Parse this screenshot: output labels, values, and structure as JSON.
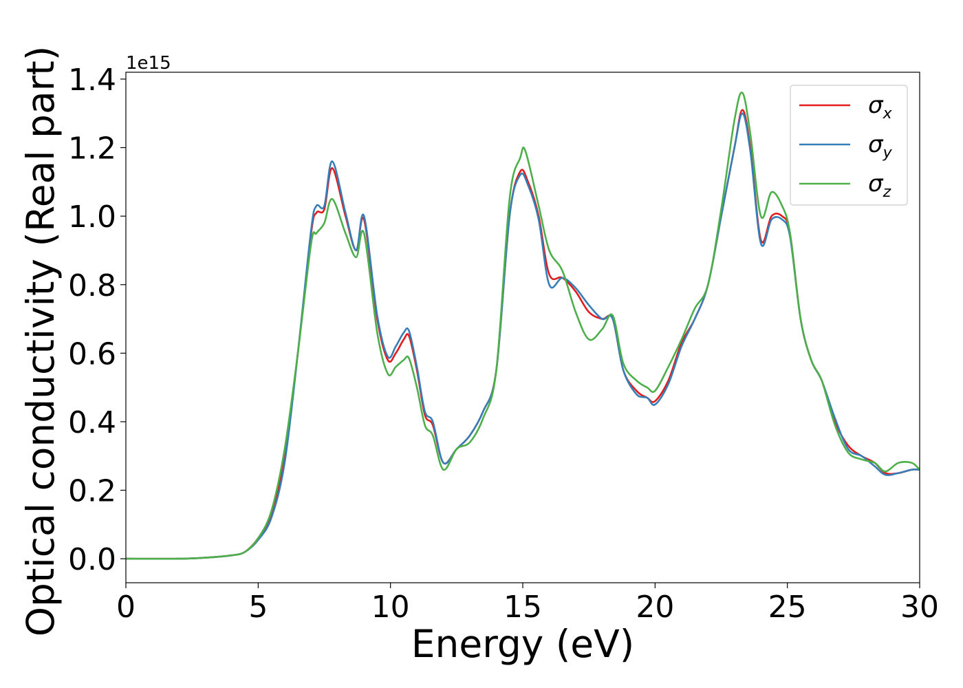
{
  "chart_data": {
    "type": "line",
    "title": "",
    "xlabel": "Energy (eV)",
    "ylabel": "Optical conductivity (Real part)",
    "y_offset_text": "1e15",
    "xlim": [
      0,
      30
    ],
    "ylim": [
      -0.07,
      1.42
    ],
    "x_ticks": [
      0,
      5,
      10,
      15,
      20,
      25,
      30
    ],
    "x_tick_labels": [
      "0",
      "5",
      "10",
      "15",
      "20",
      "25",
      "30"
    ],
    "y_ticks": [
      0.0,
      0.2,
      0.4,
      0.6,
      0.8,
      1.0,
      1.2,
      1.4
    ],
    "y_tick_labels": [
      "0.0",
      "0.2",
      "0.4",
      "0.6",
      "0.8",
      "1.0",
      "1.2",
      "1.4"
    ],
    "grid": false,
    "legend_position": "top-right",
    "series": [
      {
        "name": "σx",
        "symbol": "σ",
        "subscript": "x",
        "color": "#e41a1c",
        "points": [
          [
            0,
            0
          ],
          [
            2,
            0
          ],
          [
            3,
            0.003
          ],
          [
            4,
            0.01
          ],
          [
            4.5,
            0.02
          ],
          [
            5,
            0.06
          ],
          [
            5.5,
            0.13
          ],
          [
            6,
            0.3
          ],
          [
            6.5,
            0.6
          ],
          [
            7,
            0.95
          ],
          [
            7.2,
            1.01
          ],
          [
            7.5,
            1.02
          ],
          [
            7.8,
            1.14
          ],
          [
            8.3,
            1.0
          ],
          [
            8.7,
            0.9
          ],
          [
            9.0,
            0.99
          ],
          [
            9.5,
            0.7
          ],
          [
            9.9,
            0.58
          ],
          [
            10.2,
            0.6
          ],
          [
            10.5,
            0.64
          ],
          [
            10.7,
            0.65
          ],
          [
            11.0,
            0.55
          ],
          [
            11.3,
            0.42
          ],
          [
            11.6,
            0.39
          ],
          [
            12.0,
            0.28
          ],
          [
            12.5,
            0.32
          ],
          [
            13.0,
            0.36
          ],
          [
            13.5,
            0.43
          ],
          [
            14.0,
            0.55
          ],
          [
            14.5,
            1.0
          ],
          [
            14.9,
            1.13
          ],
          [
            15.2,
            1.1
          ],
          [
            15.6,
            1.0
          ],
          [
            16.0,
            0.83
          ],
          [
            16.5,
            0.82
          ],
          [
            17.0,
            0.78
          ],
          [
            17.5,
            0.72
          ],
          [
            18.0,
            0.7
          ],
          [
            18.4,
            0.7
          ],
          [
            18.8,
            0.55
          ],
          [
            19.3,
            0.49
          ],
          [
            19.7,
            0.47
          ],
          [
            20.0,
            0.46
          ],
          [
            20.5,
            0.52
          ],
          [
            21.0,
            0.63
          ],
          [
            21.5,
            0.7
          ],
          [
            22.0,
            0.8
          ],
          [
            22.5,
            1.0
          ],
          [
            23.0,
            1.2
          ],
          [
            23.3,
            1.31
          ],
          [
            23.6,
            1.2
          ],
          [
            24.0,
            0.93
          ],
          [
            24.4,
            1.0
          ],
          [
            24.8,
            1.0
          ],
          [
            25.1,
            0.95
          ],
          [
            25.5,
            0.7
          ],
          [
            25.9,
            0.58
          ],
          [
            26.3,
            0.52
          ],
          [
            26.8,
            0.4
          ],
          [
            27.3,
            0.33
          ],
          [
            27.8,
            0.3
          ],
          [
            28.3,
            0.28
          ],
          [
            28.7,
            0.25
          ],
          [
            29.2,
            0.25
          ],
          [
            29.7,
            0.26
          ],
          [
            30,
            0.26
          ]
        ]
      },
      {
        "name": "σy",
        "symbol": "σ",
        "subscript": "y",
        "color": "#377eb8",
        "points": [
          [
            0,
            0
          ],
          [
            2,
            0
          ],
          [
            3,
            0.003
          ],
          [
            4,
            0.01
          ],
          [
            4.5,
            0.02
          ],
          [
            5,
            0.055
          ],
          [
            5.5,
            0.12
          ],
          [
            6,
            0.28
          ],
          [
            6.5,
            0.6
          ],
          [
            7,
            0.96
          ],
          [
            7.2,
            1.03
          ],
          [
            7.5,
            1.03
          ],
          [
            7.8,
            1.16
          ],
          [
            8.3,
            1.01
          ],
          [
            8.7,
            0.9
          ],
          [
            9.0,
            1.0
          ],
          [
            9.5,
            0.71
          ],
          [
            9.9,
            0.59
          ],
          [
            10.2,
            0.62
          ],
          [
            10.5,
            0.66
          ],
          [
            10.7,
            0.665
          ],
          [
            11.0,
            0.56
          ],
          [
            11.3,
            0.43
          ],
          [
            11.6,
            0.4
          ],
          [
            12.0,
            0.28
          ],
          [
            12.5,
            0.32
          ],
          [
            13.0,
            0.36
          ],
          [
            13.5,
            0.43
          ],
          [
            14.0,
            0.55
          ],
          [
            14.5,
            1.0
          ],
          [
            14.9,
            1.12
          ],
          [
            15.2,
            1.09
          ],
          [
            15.6,
            0.99
          ],
          [
            16.0,
            0.8
          ],
          [
            16.5,
            0.82
          ],
          [
            17.0,
            0.79
          ],
          [
            17.5,
            0.74
          ],
          [
            18.0,
            0.7
          ],
          [
            18.4,
            0.7
          ],
          [
            18.8,
            0.55
          ],
          [
            19.3,
            0.48
          ],
          [
            19.7,
            0.47
          ],
          [
            20.0,
            0.45
          ],
          [
            20.5,
            0.51
          ],
          [
            21.0,
            0.62
          ],
          [
            21.5,
            0.7
          ],
          [
            22.0,
            0.8
          ],
          [
            22.5,
            1.0
          ],
          [
            23.0,
            1.2
          ],
          [
            23.3,
            1.3
          ],
          [
            23.6,
            1.19
          ],
          [
            24.0,
            0.92
          ],
          [
            24.4,
            0.99
          ],
          [
            24.8,
            0.99
          ],
          [
            25.1,
            0.94
          ],
          [
            25.5,
            0.7
          ],
          [
            25.9,
            0.58
          ],
          [
            26.3,
            0.52
          ],
          [
            26.8,
            0.41
          ],
          [
            27.3,
            0.32
          ],
          [
            27.8,
            0.3
          ],
          [
            28.3,
            0.27
          ],
          [
            28.7,
            0.245
          ],
          [
            29.2,
            0.25
          ],
          [
            29.7,
            0.26
          ],
          [
            30,
            0.26
          ]
        ]
      },
      {
        "name": "σz",
        "symbol": "σ",
        "subscript": "z",
        "color": "#4daf4a",
        "points": [
          [
            0,
            0
          ],
          [
            2,
            0
          ],
          [
            3,
            0.003
          ],
          [
            4,
            0.01
          ],
          [
            4.5,
            0.02
          ],
          [
            5,
            0.06
          ],
          [
            5.5,
            0.14
          ],
          [
            6,
            0.32
          ],
          [
            6.5,
            0.6
          ],
          [
            7,
            0.92
          ],
          [
            7.2,
            0.95
          ],
          [
            7.5,
            0.98
          ],
          [
            7.8,
            1.05
          ],
          [
            8.3,
            0.95
          ],
          [
            8.7,
            0.88
          ],
          [
            9.0,
            0.95
          ],
          [
            9.5,
            0.66
          ],
          [
            9.9,
            0.54
          ],
          [
            10.2,
            0.56
          ],
          [
            10.5,
            0.58
          ],
          [
            10.7,
            0.585
          ],
          [
            11.0,
            0.5
          ],
          [
            11.3,
            0.39
          ],
          [
            11.6,
            0.36
          ],
          [
            12.0,
            0.26
          ],
          [
            12.5,
            0.32
          ],
          [
            13.0,
            0.34
          ],
          [
            13.5,
            0.41
          ],
          [
            14.0,
            0.55
          ],
          [
            14.5,
            1.05
          ],
          [
            14.9,
            1.17
          ],
          [
            15.1,
            1.19
          ],
          [
            15.6,
            1.03
          ],
          [
            16.0,
            0.9
          ],
          [
            16.5,
            0.84
          ],
          [
            17.0,
            0.72
          ],
          [
            17.5,
            0.64
          ],
          [
            18.0,
            0.67
          ],
          [
            18.4,
            0.71
          ],
          [
            18.8,
            0.57
          ],
          [
            19.3,
            0.52
          ],
          [
            19.7,
            0.5
          ],
          [
            20.0,
            0.49
          ],
          [
            20.5,
            0.56
          ],
          [
            21.0,
            0.64
          ],
          [
            21.5,
            0.73
          ],
          [
            22.0,
            0.8
          ],
          [
            22.5,
            1.02
          ],
          [
            23.0,
            1.28
          ],
          [
            23.3,
            1.36
          ],
          [
            23.6,
            1.24
          ],
          [
            24.0,
            1.0
          ],
          [
            24.4,
            1.07
          ],
          [
            24.8,
            1.03
          ],
          [
            25.1,
            0.95
          ],
          [
            25.5,
            0.7
          ],
          [
            25.9,
            0.58
          ],
          [
            26.3,
            0.52
          ],
          [
            26.8,
            0.39
          ],
          [
            27.3,
            0.31
          ],
          [
            27.8,
            0.29
          ],
          [
            28.3,
            0.28
          ],
          [
            28.7,
            0.255
          ],
          [
            29.2,
            0.28
          ],
          [
            29.7,
            0.28
          ],
          [
            30,
            0.26
          ]
        ]
      }
    ]
  }
}
